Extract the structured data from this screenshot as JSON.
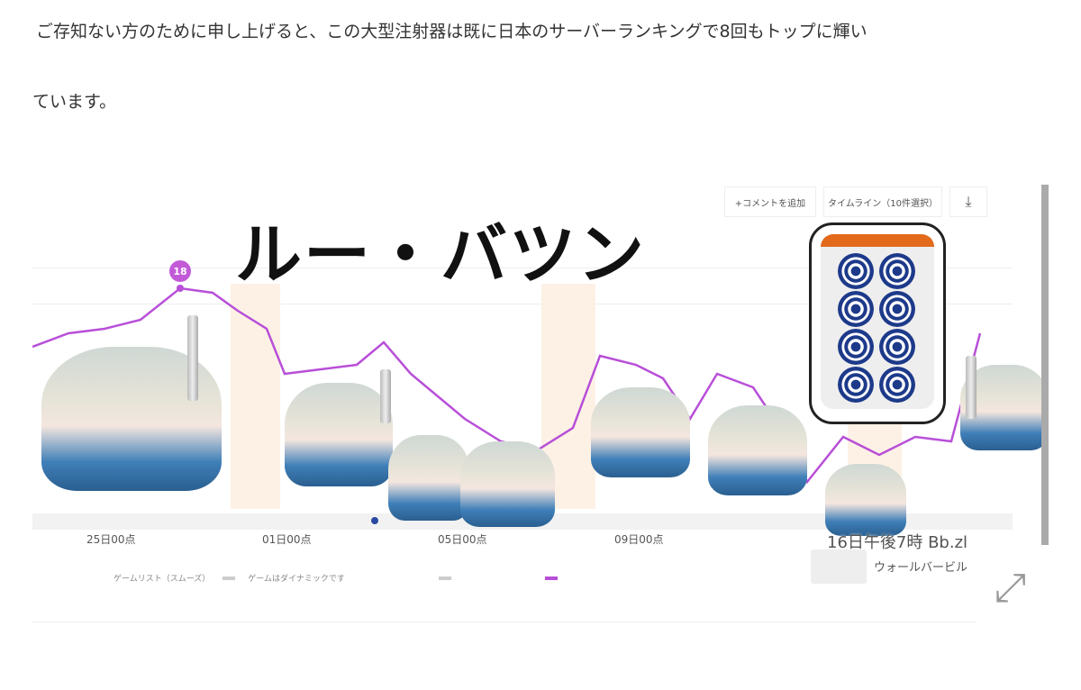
{
  "article": {
    "paragraph_line1": "ご存知ない方のために申し上げると、この大型注射器は既に日本のサーバーランキングで8回もトップに輝い",
    "paragraph_line2": "ています。"
  },
  "figure": {
    "title": "ルー・バツン",
    "toolbar": {
      "add_comment": "+コメントを追加",
      "timeline": "タイムライン（10件選択）",
      "download_icon": "download-icon"
    },
    "peak_marker": "18",
    "x_ticks": [
      "25日00点",
      "01日00点",
      "05日00点",
      "09日00点"
    ],
    "legend": {
      "item1": "ゲームリスト（スムーズ）",
      "item2": "ゲームはダイナミックです"
    },
    "caption": "16日午後7時 Bb.zl",
    "user_name": "ウォールバービル",
    "line_color": "#b84fd8",
    "tile_accent": "#e26a1a"
  }
}
